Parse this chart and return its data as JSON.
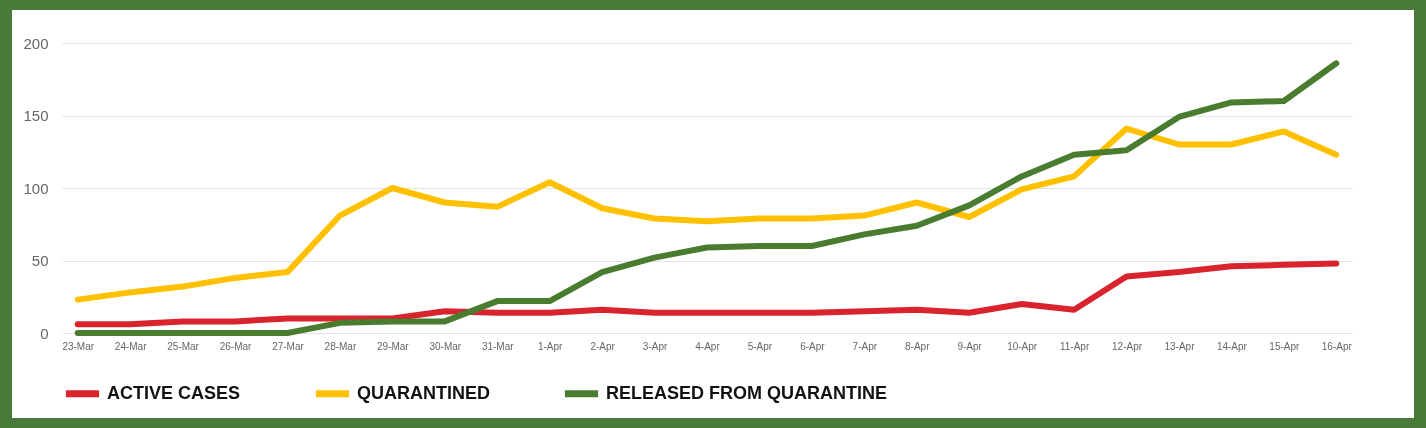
{
  "chart_data": {
    "type": "line",
    "categories": [
      "23-Mar",
      "24-Mar",
      "25-Mar",
      "26-Mar",
      "27-Mar",
      "28-Mar",
      "29-Mar",
      "30-Mar",
      "31-Mar",
      "1-Apr",
      "2-Apr",
      "3-Apr",
      "4-Apr",
      "5-Apr",
      "6-Apr",
      "7-Apr",
      "8-Apr",
      "9-Apr",
      "10-Apr",
      "11-Apr",
      "12-Apr",
      "13-Apr",
      "14-Apr",
      "15-Apr",
      "16-Apr"
    ],
    "series": [
      {
        "name": "ACTIVE CASES",
        "color": "#d9232d",
        "values": [
          6,
          6,
          8,
          8,
          10,
          10,
          10,
          15,
          14,
          14,
          16,
          14,
          14,
          14,
          14,
          15,
          16,
          14,
          20,
          16,
          39,
          42,
          46,
          47,
          48
        ]
      },
      {
        "name": "QUARANTINED",
        "color": "#ffc000",
        "values": [
          23,
          28,
          32,
          38,
          42,
          81,
          100,
          90,
          87,
          104,
          86,
          79,
          77,
          79,
          79,
          81,
          90,
          80,
          99,
          108,
          141,
          130,
          130,
          139,
          123
        ]
      },
      {
        "name": "RELEASED FROM QUARANTINE",
        "color": "#4a7c2f",
        "values": [
          0,
          0,
          0,
          0,
          0,
          7,
          8,
          8,
          22,
          22,
          42,
          52,
          59,
          60,
          60,
          68,
          74,
          88,
          108,
          123,
          126,
          149,
          159,
          160,
          186
        ]
      }
    ],
    "ylim": [
      0,
      200
    ],
    "yticks": [
      0,
      50,
      100,
      150,
      200
    ],
    "grid": "y",
    "legend": "bottom",
    "line_style": "solid"
  }
}
